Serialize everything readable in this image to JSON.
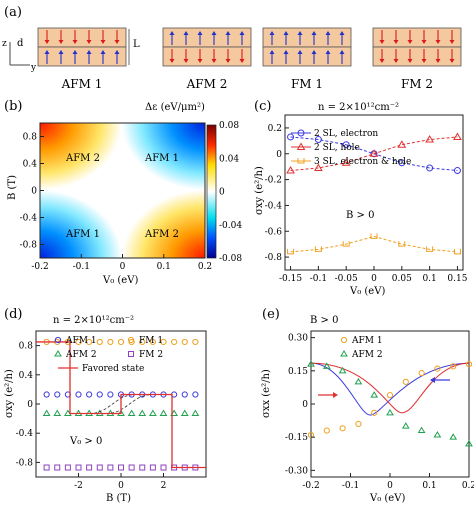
{
  "panel_a": {
    "label": "(a)",
    "axes": {
      "z": "z",
      "y": "y",
      "d": "d",
      "L": "L"
    },
    "configs": [
      {
        "name": "AFM 1",
        "top": "down",
        "bottom": "up"
      },
      {
        "name": "AFM 2",
        "top": "up",
        "bottom": "down"
      },
      {
        "name": "FM 1",
        "top": "up",
        "bottom": "up"
      },
      {
        "name": "FM 2",
        "top": "down",
        "bottom": "down"
      }
    ]
  },
  "panel_b": {
    "label": "(b)",
    "title": "Δε (eV/μm²)",
    "xlabel": "V₀ (eV)",
    "ylabel": "B (T)",
    "xticks": [
      "-0.2",
      "-0.1",
      "0",
      "0.1",
      "0.2"
    ],
    "yticks": [
      "0.8",
      "0.4",
      "0",
      "-0.4",
      "-0.8"
    ],
    "colorbar_ticks": [
      "0.08",
      "0.04",
      "0",
      "-0.04",
      "-0.08"
    ],
    "quadrants": [
      "AFM 2",
      "AFM 1",
      "AFM 1",
      "AFM 2"
    ]
  },
  "panel_c": {
    "label": "(c)",
    "title": "n = 2×10¹²cm⁻²",
    "xlabel": "V₀ (eV)",
    "ylabel": "σxy (e²/h)",
    "annotation": "B > 0",
    "xticks": [
      "-0.15",
      "-0.1",
      "-0.05",
      "0",
      "0.05",
      "0.1",
      "0.15"
    ],
    "yticks": [
      "0.2",
      "0",
      "-0.2",
      "-0.4",
      "-0.6",
      "-0.8"
    ],
    "legend": [
      "2 SL, electron",
      "2 SL, hole",
      "3 SL, electron & hole"
    ],
    "colors": [
      "#3a3adf",
      "#e03030",
      "#f0a020"
    ]
  },
  "panel_d": {
    "label": "(d)",
    "title": "n = 2×10¹²cm⁻²",
    "xlabel": "B (T)",
    "ylabel": "σxy (e²/h)",
    "annotation": "V₀ > 0",
    "xticks": [
      "-2",
      "0",
      "2"
    ],
    "yticks": [
      "0.8",
      "0.4",
      "0",
      "-0.4",
      "-0.8"
    ],
    "legend": [
      "AFM 1",
      "FM 1",
      "AFM 2",
      "FM 2",
      "Favored state"
    ]
  },
  "panel_e": {
    "label": "(e)",
    "title": "B > 0",
    "xlabel": "V₀ (eV)",
    "ylabel": "σxx (e²/h)",
    "xticks": [
      "-0.2",
      "-0.1",
      "0",
      "0.1",
      "0.2"
    ],
    "yticks": [
      "0.30",
      "0.15",
      "0",
      "-0.15",
      "-0.30"
    ],
    "legend": [
      "AFM 1",
      "AFM 2"
    ]
  },
  "chart_data": [
    {
      "type": "heatmap",
      "panel": "b",
      "title": "Δε (eV/μm²)",
      "xlabel": "V₀ (eV)",
      "ylabel": "B (T)",
      "xlim": [
        -0.2,
        0.2
      ],
      "ylim": [
        -1,
        1
      ],
      "clim": [
        -0.08,
        0.08
      ]
    },
    {
      "type": "line",
      "panel": "c",
      "xlabel": "V₀ (eV)",
      "ylabel": "σxy (e²/h)",
      "xlim": [
        -0.16,
        0.16
      ],
      "ylim": [
        -0.9,
        0.3
      ],
      "x": [
        -0.15,
        -0.1,
        -0.05,
        0,
        0.05,
        0.1,
        0.15
      ],
      "series": [
        {
          "name": "2 SL, electron",
          "values": [
            0.13,
            0.11,
            0.07,
            0.0,
            -0.07,
            -0.11,
            -0.13
          ]
        },
        {
          "name": "2 SL, hole",
          "values": [
            -0.13,
            -0.11,
            -0.07,
            0.0,
            0.07,
            0.11,
            0.13
          ]
        },
        {
          "name": "3 SL, electron & hole",
          "values": [
            -0.76,
            -0.74,
            -0.7,
            -0.64,
            -0.7,
            -0.74,
            -0.76
          ]
        }
      ]
    },
    {
      "type": "scatter",
      "panel": "d",
      "xlabel": "B (T)",
      "ylabel": "σxy (e²/h)",
      "xlim": [
        -4,
        4
      ],
      "ylim": [
        -1,
        1
      ],
      "x": [
        -3.5,
        -3,
        -2.5,
        -2,
        -1.5,
        -1,
        -0.5,
        0,
        0.5,
        1,
        1.5,
        2,
        2.5,
        3,
        3.5
      ],
      "series": [
        {
          "name": "AFM 1",
          "values": [
            0.13,
            0.13,
            0.13,
            0.13,
            0.13,
            0.13,
            0.13,
            0.13,
            0.13,
            0.13,
            0.13,
            0.13,
            0.13,
            0.13,
            0.13
          ]
        },
        {
          "name": "FM 1",
          "values": [
            0.85,
            0.85,
            0.85,
            0.85,
            0.85,
            0.85,
            0.85,
            0.85,
            0.85,
            0.85,
            0.85,
            0.85,
            0.85,
            0.85,
            0.85
          ]
        },
        {
          "name": "AFM 2",
          "values": [
            -0.13,
            -0.13,
            -0.13,
            -0.13,
            -0.13,
            -0.13,
            -0.13,
            -0.13,
            -0.13,
            -0.13,
            -0.13,
            -0.13,
            -0.13,
            -0.13,
            -0.13
          ]
        },
        {
          "name": "FM 2",
          "values": [
            -0.87,
            -0.87,
            -0.87,
            -0.87,
            -0.87,
            -0.87,
            -0.87,
            -0.87,
            -0.87,
            -0.87,
            -0.87,
            -0.87,
            -0.87,
            -0.87,
            -0.87
          ]
        }
      ],
      "favored_state": {
        "name": "Favored state",
        "x": [
          -4,
          -2.4,
          -2.4,
          0,
          0,
          2.4,
          2.4,
          4
        ],
        "y": [
          0.85,
          0.85,
          -0.13,
          -0.13,
          0.13,
          0.13,
          -0.87,
          -0.87
        ]
      }
    },
    {
      "type": "line",
      "panel": "e",
      "xlabel": "V₀ (eV)",
      "ylabel": "σxx (e²/h)",
      "xlim": [
        -0.2,
        0.2
      ],
      "ylim": [
        -0.33,
        0.33
      ],
      "x": [
        -0.2,
        -0.16,
        -0.12,
        -0.08,
        -0.04,
        0,
        0.04,
        0.08,
        0.12,
        0.16,
        0.2
      ],
      "series": [
        {
          "name": "AFM 1",
          "values": [
            -0.14,
            -0.12,
            -0.11,
            -0.09,
            -0.04,
            0.04,
            0.1,
            0.14,
            0.16,
            0.17,
            0.18
          ]
        },
        {
          "name": "AFM 2",
          "values": [
            0.18,
            0.17,
            0.15,
            0.1,
            0.04,
            -0.04,
            -0.1,
            -0.12,
            -0.14,
            -0.15,
            -0.18
          ]
        }
      ]
    }
  ]
}
